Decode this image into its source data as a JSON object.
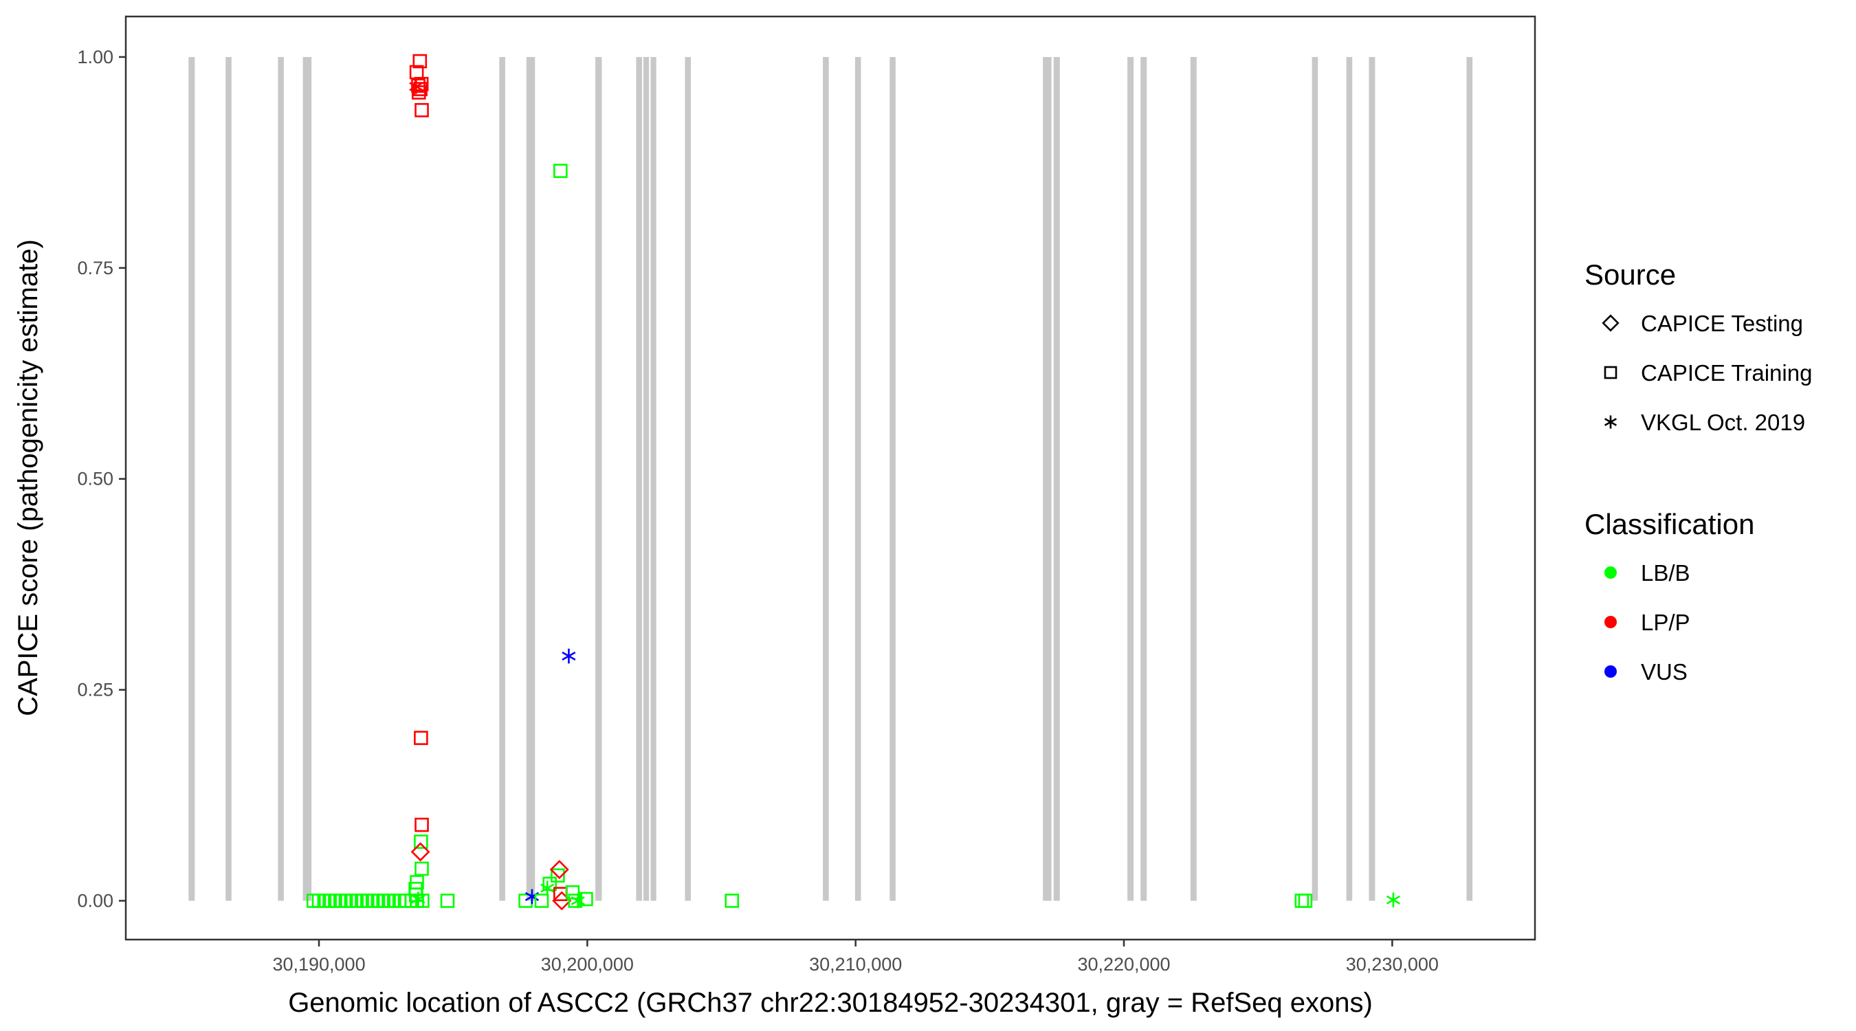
{
  "chart_data": {
    "type": "scatter",
    "xlabel": "Genomic location of ASCC2 (GRCh37 chr22:30184952-30234301, gray = RefSeq exons)",
    "ylabel": "CAPICE score (pathogenicity estimate)",
    "xlim": [
      30182800,
      30235320
    ],
    "ylim": [
      -0.046,
      1.048
    ],
    "x_ticks": [
      30190000,
      30200000,
      30210000,
      30220000,
      30230000
    ],
    "x_tick_labels": [
      "30,190,000",
      "30,200,000",
      "30,210,000",
      "30,220,000",
      "30,230,000"
    ],
    "y_ticks": [
      0,
      0.25,
      0.5,
      0.75,
      1.0
    ],
    "y_tick_labels": [
      "0.00",
      "0.25",
      "0.50",
      "0.75",
      "1.00"
    ],
    "grid": false,
    "exon_color": "#c8c8c8",
    "exons": [
      [
        30185140,
        30185370
      ],
      [
        30186520,
        30186740
      ],
      [
        30188470,
        30188690
      ],
      [
        30189400,
        30189720
      ],
      [
        30196720,
        30196940
      ],
      [
        30197730,
        30198050
      ],
      [
        30200300,
        30200540
      ],
      [
        30201820,
        30202040
      ],
      [
        30202090,
        30202300
      ],
      [
        30202360,
        30202570
      ],
      [
        30203640,
        30203860
      ],
      [
        30208780,
        30209000
      ],
      [
        30209980,
        30210200
      ],
      [
        30211270,
        30211490
      ],
      [
        30216980,
        30217300
      ],
      [
        30217380,
        30217610
      ],
      [
        30220130,
        30220360
      ],
      [
        30220620,
        30220850
      ],
      [
        30222480,
        30222710
      ],
      [
        30227010,
        30227230
      ],
      [
        30228290,
        30228510
      ],
      [
        30229130,
        30229360
      ],
      [
        30232770,
        30232990
      ]
    ],
    "legend": {
      "placement": "right",
      "source_title": "Source",
      "source_items": [
        {
          "label": "CAPICE Testing",
          "shape": "diamond"
        },
        {
          "label": "CAPICE Training",
          "shape": "square"
        },
        {
          "label": "VKGL Oct. 2019",
          "shape": "asterisk"
        }
      ],
      "class_title": "Classification",
      "class_items": [
        {
          "label": "LB/B",
          "color": "#00ff00"
        },
        {
          "label": "LP/P",
          "color": "#ff0000"
        },
        {
          "label": "VUS",
          "color": "#0000ff"
        }
      ]
    },
    "points": [
      {
        "x": 30193760,
        "y": 0.995,
        "source": "square",
        "cls": "LP/P"
      },
      {
        "x": 30193640,
        "y": 0.982,
        "source": "square",
        "cls": "LP/P"
      },
      {
        "x": 30193700,
        "y": 0.966,
        "source": "square",
        "cls": "LP/P"
      },
      {
        "x": 30193780,
        "y": 0.962,
        "source": "square",
        "cls": "LP/P"
      },
      {
        "x": 30193820,
        "y": 0.968,
        "source": "square",
        "cls": "LP/P"
      },
      {
        "x": 30193720,
        "y": 0.958,
        "source": "square",
        "cls": "LP/P"
      },
      {
        "x": 30193620,
        "y": 0.965,
        "source": "asterisk",
        "cls": "LP/P"
      },
      {
        "x": 30193830,
        "y": 0.937,
        "source": "square",
        "cls": "LP/P"
      },
      {
        "x": 30193800,
        "y": 0.193,
        "source": "square",
        "cls": "LP/P"
      },
      {
        "x": 30193830,
        "y": 0.09,
        "source": "square",
        "cls": "LP/P"
      },
      {
        "x": 30193800,
        "y": 0.07,
        "source": "square",
        "cls": "LB/B"
      },
      {
        "x": 30193780,
        "y": 0.058,
        "source": "diamond",
        "cls": "LP/P"
      },
      {
        "x": 30193830,
        "y": 0.038,
        "source": "square",
        "cls": "LB/B"
      },
      {
        "x": 30193650,
        "y": 0.022,
        "source": "square",
        "cls": "LB/B"
      },
      {
        "x": 30193600,
        "y": 0.014,
        "source": "square",
        "cls": "LB/B"
      },
      {
        "x": 30193620,
        "y": 0.007,
        "source": "square",
        "cls": "LB/B"
      },
      {
        "x": 30193700,
        "y": 0.002,
        "source": "asterisk",
        "cls": "LB/B"
      },
      {
        "x": 30189800,
        "y": 0,
        "source": "square",
        "cls": "LB/B"
      },
      {
        "x": 30190000,
        "y": 0,
        "source": "square",
        "cls": "LB/B"
      },
      {
        "x": 30190200,
        "y": 0,
        "source": "square",
        "cls": "LB/B"
      },
      {
        "x": 30190400,
        "y": 0,
        "source": "square",
        "cls": "LB/B"
      },
      {
        "x": 30190600,
        "y": 0,
        "source": "square",
        "cls": "LB/B"
      },
      {
        "x": 30190800,
        "y": 0,
        "source": "square",
        "cls": "LB/B"
      },
      {
        "x": 30191000,
        "y": 0,
        "source": "square",
        "cls": "LB/B"
      },
      {
        "x": 30191200,
        "y": 0,
        "source": "square",
        "cls": "LB/B"
      },
      {
        "x": 30191400,
        "y": 0,
        "source": "square",
        "cls": "LB/B"
      },
      {
        "x": 30191600,
        "y": 0,
        "source": "square",
        "cls": "LB/B"
      },
      {
        "x": 30191800,
        "y": 0,
        "source": "square",
        "cls": "LB/B"
      },
      {
        "x": 30192000,
        "y": 0,
        "source": "square",
        "cls": "LB/B"
      },
      {
        "x": 30192200,
        "y": 0,
        "source": "square",
        "cls": "LB/B"
      },
      {
        "x": 30192400,
        "y": 0,
        "source": "square",
        "cls": "LB/B"
      },
      {
        "x": 30192600,
        "y": 0,
        "source": "square",
        "cls": "LB/B"
      },
      {
        "x": 30192800,
        "y": 0,
        "source": "square",
        "cls": "LB/B"
      },
      {
        "x": 30193000,
        "y": 0,
        "source": "square",
        "cls": "LB/B"
      },
      {
        "x": 30193200,
        "y": 0,
        "source": "square",
        "cls": "LB/B"
      },
      {
        "x": 30193450,
        "y": 0,
        "source": "square",
        "cls": "LB/B"
      },
      {
        "x": 30193650,
        "y": 0,
        "source": "square",
        "cls": "LB/B"
      },
      {
        "x": 30193850,
        "y": 0,
        "source": "square",
        "cls": "LB/B"
      },
      {
        "x": 30194790,
        "y": 0,
        "source": "square",
        "cls": "LB/B"
      },
      {
        "x": 30199000,
        "y": 0.865,
        "source": "square",
        "cls": "LB/B"
      },
      {
        "x": 30197700,
        "y": 0,
        "source": "square",
        "cls": "LB/B"
      },
      {
        "x": 30197940,
        "y": 0.005,
        "source": "asterisk",
        "cls": "VUS"
      },
      {
        "x": 30199310,
        "y": 0.29,
        "source": "asterisk",
        "cls": "VUS"
      },
      {
        "x": 30198300,
        "y": 0,
        "source": "square",
        "cls": "LB/B"
      },
      {
        "x": 30198510,
        "y": 0.015,
        "source": "asterisk",
        "cls": "LB/B"
      },
      {
        "x": 30198600,
        "y": 0.02,
        "source": "square",
        "cls": "LB/B"
      },
      {
        "x": 30198900,
        "y": 0.03,
        "source": "square",
        "cls": "LB/B"
      },
      {
        "x": 30198960,
        "y": 0.037,
        "source": "diamond",
        "cls": "LP/P"
      },
      {
        "x": 30199000,
        "y": 0.008,
        "source": "square",
        "cls": "LP/P"
      },
      {
        "x": 30199050,
        "y": 0,
        "source": "diamond",
        "cls": "LP/P"
      },
      {
        "x": 30199450,
        "y": 0.01,
        "source": "square",
        "cls": "LB/B"
      },
      {
        "x": 30199550,
        "y": 0,
        "source": "square",
        "cls": "LB/B"
      },
      {
        "x": 30199650,
        "y": 0,
        "source": "asterisk",
        "cls": "LB/B"
      },
      {
        "x": 30199950,
        "y": 0.002,
        "source": "square",
        "cls": "LB/B"
      },
      {
        "x": 30205390,
        "y": 0,
        "source": "square",
        "cls": "LB/B"
      },
      {
        "x": 30226630,
        "y": 0,
        "source": "square",
        "cls": "LB/B"
      },
      {
        "x": 30226760,
        "y": 0,
        "source": "square",
        "cls": "LB/B"
      },
      {
        "x": 30230040,
        "y": 0.001,
        "source": "asterisk",
        "cls": "LB/B"
      }
    ]
  }
}
